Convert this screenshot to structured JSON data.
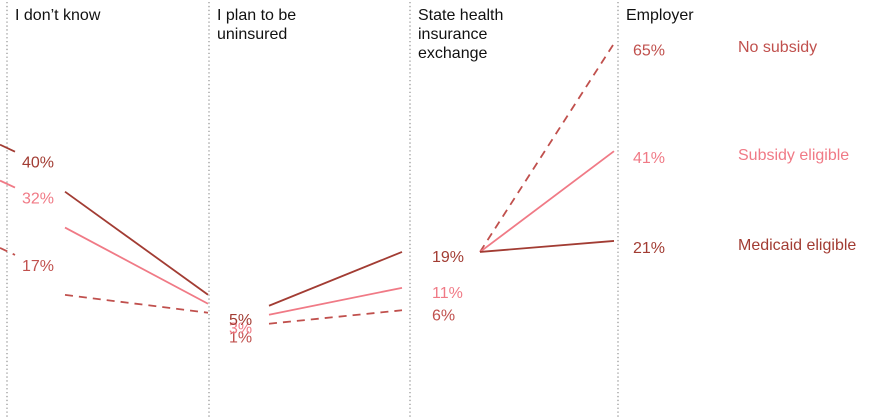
{
  "chart_data": {
    "type": "line",
    "categories": [
      "I don’t know",
      "I plan to be uninsured",
      "State health insurance exchange",
      "Employer"
    ],
    "category_lines": [
      [
        "I don’t know"
      ],
      [
        "I plan to be",
        "uninsured"
      ],
      [
        "State health",
        "insurance",
        "exchange"
      ],
      [
        "Employer"
      ]
    ],
    "series": [
      {
        "name": "No subsidy",
        "values": [
          17,
          1,
          6,
          65
        ],
        "labels": [
          "17%",
          "1%",
          "6%",
          "65%"
        ],
        "color": "#c0504d",
        "style": "dashed"
      },
      {
        "name": "Subsidy eligible",
        "values": [
          32,
          3,
          11,
          41
        ],
        "labels": [
          "32%",
          "3%",
          "11%",
          "41%"
        ],
        "color": "#f07a86",
        "style": "solid"
      },
      {
        "name": "Medicaid eligible",
        "values": [
          40,
          5,
          19,
          21
        ],
        "labels": [
          "40%",
          "5%",
          "19%",
          "21%"
        ],
        "color": "#a23c33",
        "style": "solid"
      }
    ],
    "ylim": [
      0,
      70
    ],
    "grid": "vertical dotted separators"
  }
}
